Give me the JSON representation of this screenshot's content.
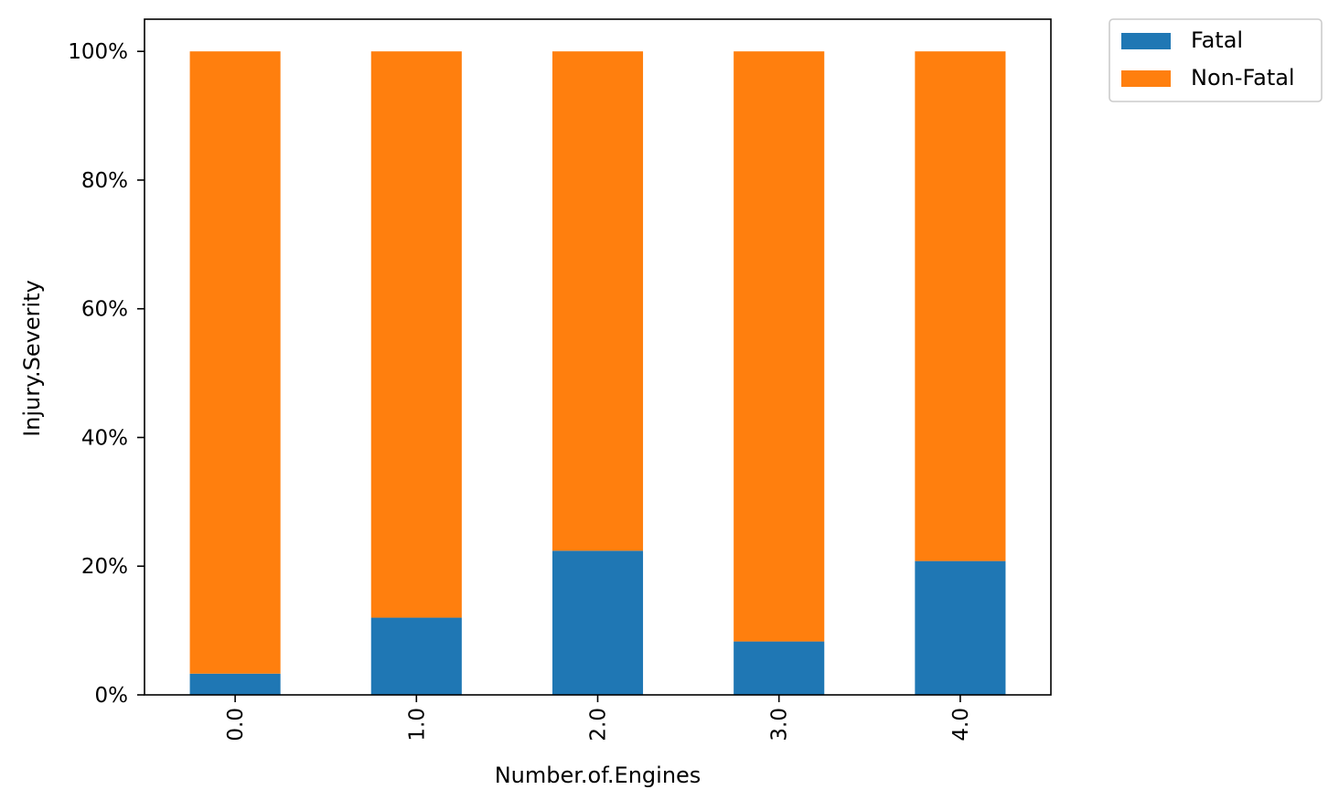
{
  "chart_data": {
    "type": "bar",
    "stacked": true,
    "xlabel": "Number.of.Engines",
    "ylabel": "Injury.Severity",
    "categories": [
      "0.0",
      "1.0",
      "2.0",
      "3.0",
      "4.0"
    ],
    "series": [
      {
        "name": "Fatal",
        "color": "#1f77b4",
        "values": [
          3.3,
          12.0,
          22.4,
          8.3,
          20.8
        ]
      },
      {
        "name": "Non-Fatal",
        "color": "#ff7f0e",
        "values": [
          96.7,
          88.0,
          77.6,
          91.7,
          79.2
        ]
      }
    ],
    "ylim": [
      0,
      105
    ],
    "yticks": [
      0,
      20,
      40,
      60,
      80,
      100
    ],
    "ytick_labels": [
      "0%",
      "20%",
      "40%",
      "60%",
      "80%",
      "100%"
    ],
    "x_tick_rotation": "vertical",
    "grid": false,
    "legend": {
      "placement": "outside-top-right",
      "entries": [
        "Fatal",
        "Non-Fatal"
      ]
    }
  }
}
